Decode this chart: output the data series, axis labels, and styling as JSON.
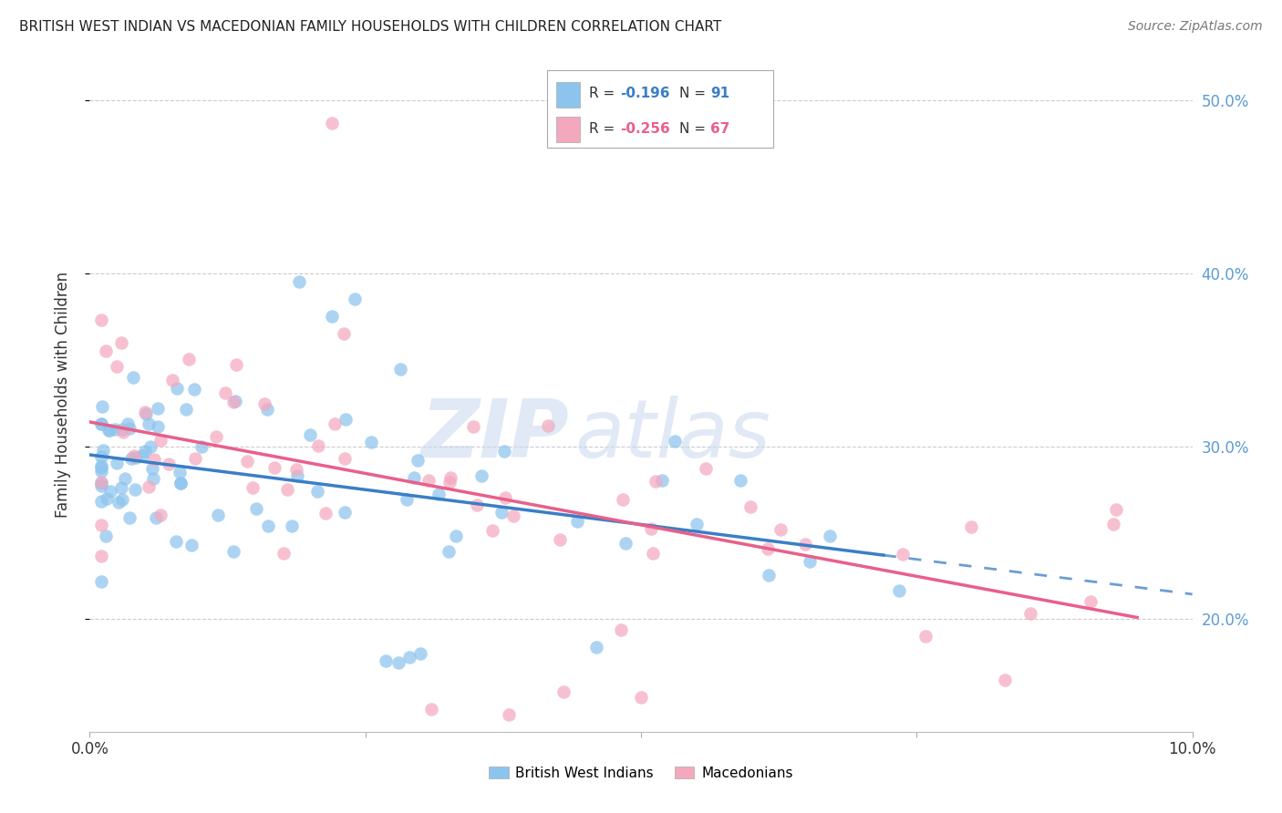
{
  "title": "BRITISH WEST INDIAN VS MACEDONIAN FAMILY HOUSEHOLDS WITH CHILDREN CORRELATION CHART",
  "source": "Source: ZipAtlas.com",
  "ylabel": "Family Households with Children",
  "xlim": [
    0.0,
    0.1
  ],
  "ylim": [
    0.135,
    0.525
  ],
  "yticks": [
    0.2,
    0.3,
    0.4,
    0.5
  ],
  "ytick_labels": [
    "20.0%",
    "30.0%",
    "40.0%",
    "50.0%"
  ],
  "xticks": [
    0.0,
    0.025,
    0.05,
    0.075,
    0.1
  ],
  "xtick_labels": [
    "0.0%",
    "",
    "",
    "",
    "10.0%"
  ],
  "blue_R": -0.196,
  "blue_N": 91,
  "pink_R": -0.256,
  "pink_N": 67,
  "blue_color": "#8DC4EE",
  "pink_color": "#F4A8BE",
  "blue_line_color": "#3A7EC6",
  "pink_line_color": "#E8608A",
  "blue_legend_label": "British West Indians",
  "pink_legend_label": "Macedonians",
  "watermark_zip": "ZIP",
  "watermark_atlas": "atlas",
  "background_color": "#FFFFFF",
  "grid_color": "#CCCCCC",
  "right_axis_color": "#5B9BD5",
  "title_fontsize": 11,
  "source_fontsize": 10,
  "legend_R_color": "#222222",
  "legend_N_color": "#3A7EC6"
}
